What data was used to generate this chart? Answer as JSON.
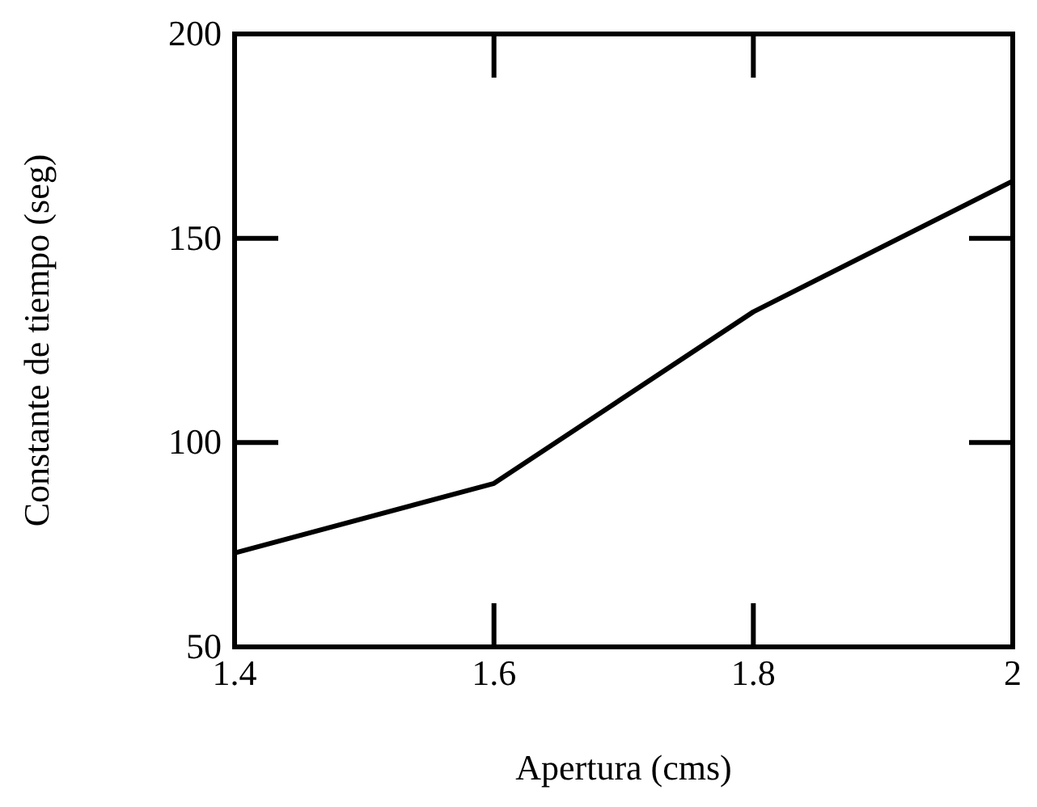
{
  "chart_data": {
    "type": "line",
    "xlabel": "Apertura (cms)",
    "ylabel": "Constante de tiempo (seg)",
    "x": [
      1.4,
      1.6,
      1.8,
      2
    ],
    "series": [
      {
        "color": "#000000",
        "values": [
          73,
          90,
          132,
          164
        ]
      }
    ],
    "xlim": [
      1.4,
      2
    ],
    "xticks": [
      1.4,
      1.6,
      1.8,
      2
    ],
    "ylim": [
      50,
      200
    ],
    "yticks": [
      50,
      100,
      150,
      200
    ],
    "grid": false,
    "marker": "none",
    "line_style": "solid"
  }
}
